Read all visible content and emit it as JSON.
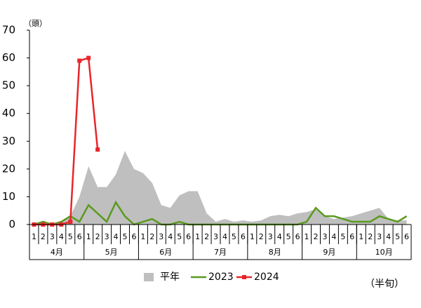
{
  "chart_data": {
    "type": "line",
    "y_label": "（頭）",
    "x_label": "（半旬）",
    "categories": [
      "1",
      "2",
      "3",
      "4",
      "5",
      "6",
      "1",
      "2",
      "3",
      "4",
      "5",
      "6",
      "1",
      "2",
      "3",
      "4",
      "5",
      "6",
      "1",
      "2",
      "3",
      "4",
      "5",
      "6",
      "1",
      "2",
      "3",
      "4",
      "5",
      "6",
      "1",
      "2",
      "3",
      "4",
      "5",
      "6",
      "1",
      "2",
      "3",
      "4",
      "5",
      "6"
    ],
    "groups": [
      "4月",
      "5月",
      "6月",
      "7月",
      "8月",
      "9月",
      "10月"
    ],
    "ylim": [
      0,
      70
    ],
    "yticks": [
      0,
      10,
      20,
      30,
      40,
      50,
      60,
      70
    ],
    "series": [
      {
        "name": "平年",
        "style": "area",
        "color": "#bfbfbf",
        "values": [
          0,
          0.5,
          0,
          1,
          3,
          10,
          21,
          13.5,
          13.5,
          18,
          26.5,
          20,
          18.5,
          15,
          7,
          6,
          10.5,
          12,
          12,
          4,
          1,
          2,
          1,
          1.5,
          1,
          1.5,
          3,
          3.5,
          3,
          4,
          4.5,
          5.5,
          3,
          2,
          2.5,
          3,
          4,
          5,
          6,
          2,
          1.5,
          1.5
        ]
      },
      {
        "name": "2023",
        "style": "line",
        "color": "#5b9a1e",
        "values": [
          0,
          1,
          0,
          1,
          3,
          1,
          7,
          4,
          1,
          8,
          3,
          0,
          1,
          2,
          0,
          0,
          1,
          0,
          0,
          0,
          0,
          0,
          0,
          0,
          0,
          0,
          0,
          0,
          0,
          0,
          1,
          6,
          3,
          3,
          2,
          1,
          1,
          1,
          3,
          2,
          1,
          3
        ]
      },
      {
        "name": "2024",
        "style": "line-marker",
        "color": "#e8262a",
        "values": [
          0,
          0,
          0,
          0,
          1,
          59,
          60,
          27,
          null,
          null,
          null,
          null,
          null,
          null,
          null,
          null,
          null,
          null,
          null,
          null,
          null,
          null,
          null,
          null,
          null,
          null,
          null,
          null,
          null,
          null,
          null,
          null,
          null,
          null,
          null,
          null,
          null,
          null,
          null,
          null,
          null,
          null
        ]
      }
    ]
  }
}
